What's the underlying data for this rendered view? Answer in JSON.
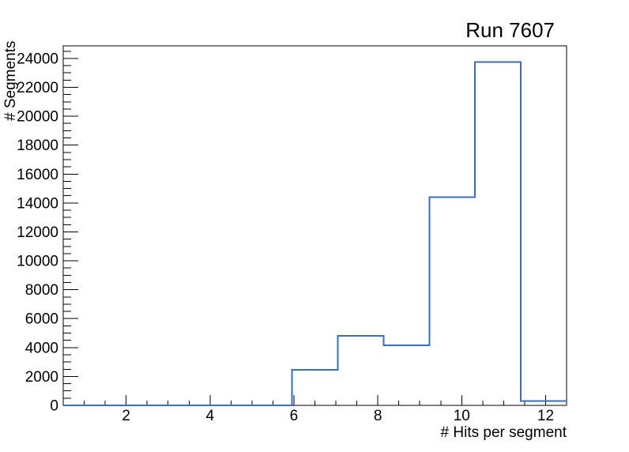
{
  "chart_data": {
    "type": "histogram-step",
    "title": "Run 7607",
    "xlabel": "# Hits per segment",
    "ylabel": "# Segments",
    "xlim": [
      0.5,
      12.5
    ],
    "ylim": [
      0,
      24870
    ],
    "grid": false,
    "legend": "none",
    "bins": {
      "edges": [
        0.5,
        1.5909,
        2.6818,
        3.7727,
        4.8636,
        5.9545,
        7.0455,
        8.1364,
        9.2273,
        10.3182,
        11.4091,
        12.5
      ],
      "counts": [
        0,
        0,
        0,
        0,
        0,
        2450,
        4800,
        4150,
        14400,
        23740,
        300
      ]
    },
    "x_major_ticks": [
      2,
      4,
      6,
      8,
      10,
      12
    ],
    "x_tick_labels": [
      "2",
      "4",
      "6",
      "8",
      "10",
      "12"
    ],
    "x_minor_step": 0.5,
    "y_major_step": 2000,
    "y_minor_step": 500,
    "y_tick_labels": [
      "0",
      "2000",
      "4000",
      "6000",
      "8000",
      "10000",
      "12000",
      "14000",
      "16000",
      "18000",
      "20000",
      "22000",
      "24000"
    ],
    "colors": {
      "line": "#3a6cc4",
      "frame": "#000000",
      "text": "#000000",
      "background": "#ffffff"
    }
  }
}
